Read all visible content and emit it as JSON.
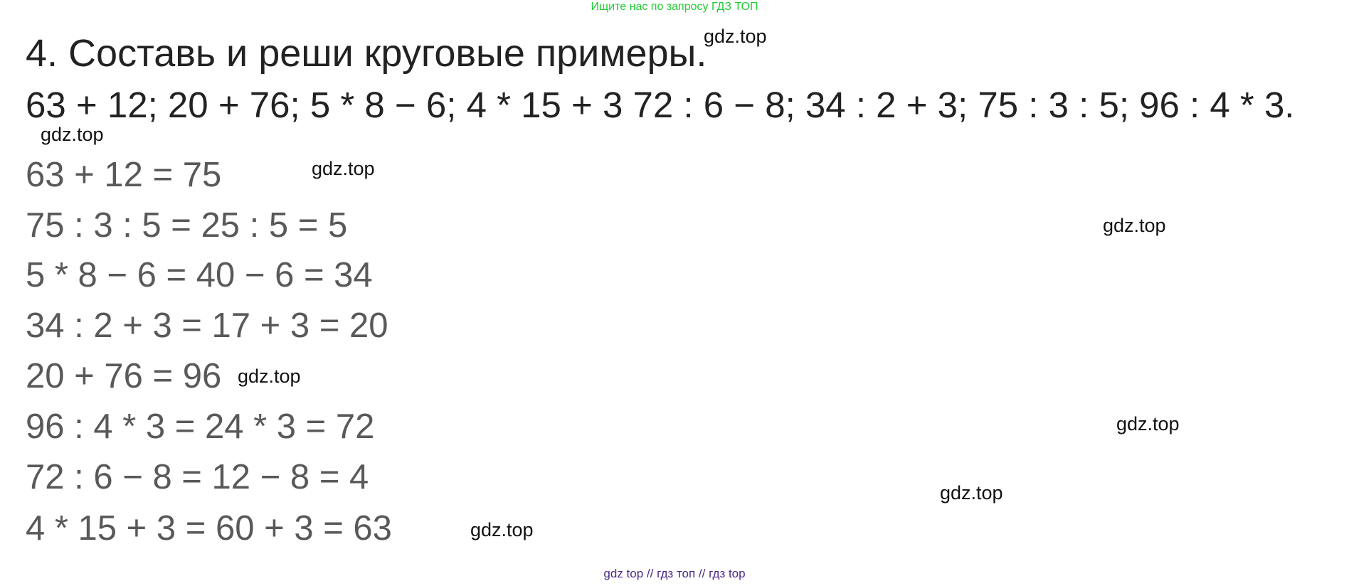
{
  "header_hint": "Ищите нас по запросу ГДЗ ТОП",
  "title": "4. Составь и реши круговые примеры.",
  "task": "63 + 12; 20 + 76; 5 * 8 − 6; 4 * 15 + 3 72 : 6 − 8; 34 : 2 + 3; 75 : 3 : 5; 96 : 4 * 3.",
  "answers": [
    "63 + 12 = 75",
    "75 : 3 : 5 = 25 : 5 = 5",
    "5 * 8 − 6 = 40 − 6 = 34",
    "34 : 2 + 3 = 17 + 3 = 20",
    "20 + 76 = 96",
    "96 : 4 * 3 = 24 * 3 = 72",
    "72 : 6 − 8 = 12 − 8 = 4",
    "4 * 15 + 3 = 60 + 3 = 63"
  ],
  "watermark": "gdz.top",
  "footer": "gdz top  //  гдз топ  //  гдз top",
  "colors": {
    "hint": "#22cc33",
    "answers": "#595959",
    "footer": "#4b2a86"
  }
}
